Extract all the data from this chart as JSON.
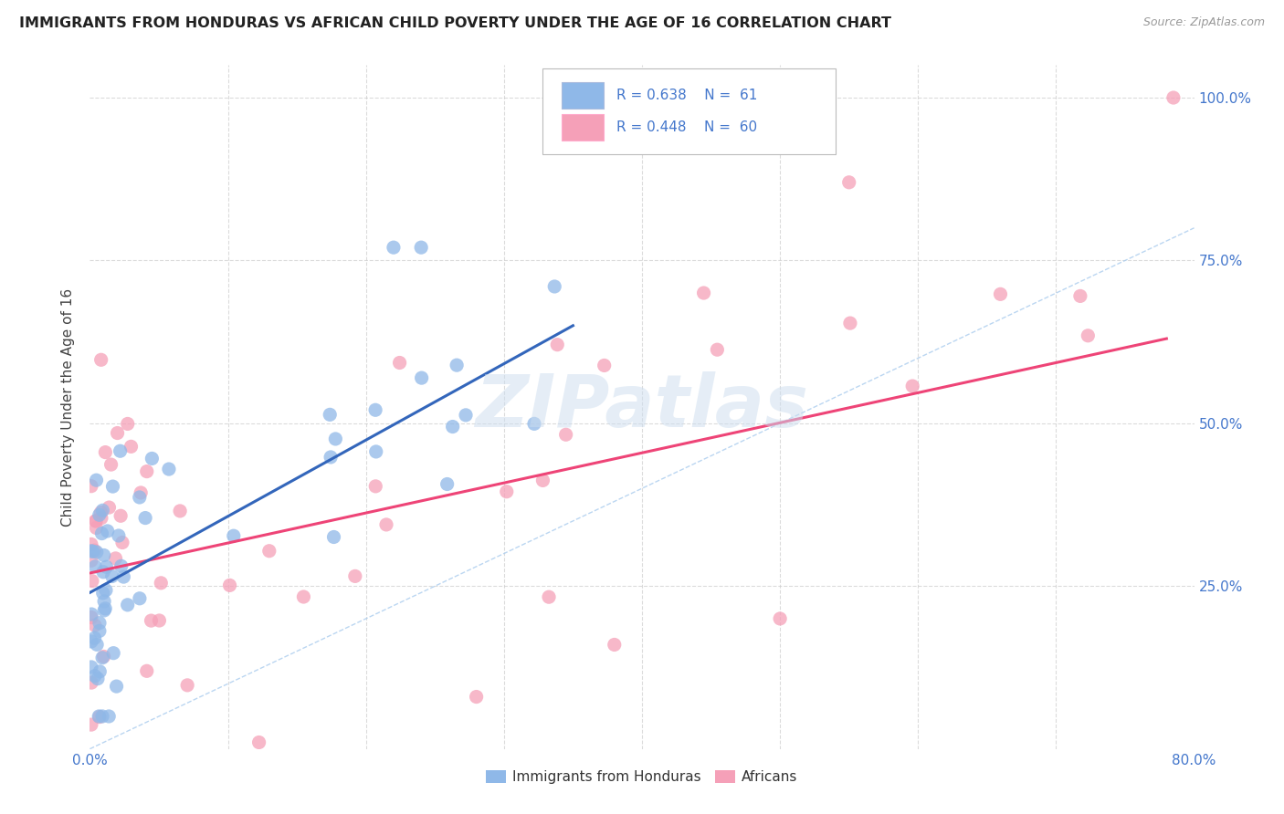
{
  "title": "IMMIGRANTS FROM HONDURAS VS AFRICAN CHILD POVERTY UNDER THE AGE OF 16 CORRELATION CHART",
  "source": "Source: ZipAtlas.com",
  "ylabel": "Child Poverty Under the Age of 16",
  "xlim": [
    0,
    0.8
  ],
  "ylim": [
    0,
    1.05
  ],
  "color_blue": "#8FB8E8",
  "color_pink": "#F5A0B8",
  "color_blue_line": "#3366BB",
  "color_pink_line": "#EE4477",
  "color_diag": "#AACCEE",
  "color_blue_text": "#4477CC",
  "color_grid": "#CCCCCC",
  "marker_size": 120,
  "background_color": "#FFFFFF",
  "watermark_text": "ZIPatlas",
  "watermark_color": "#CCDDEF",
  "legend_blue_r": "R = 0.638",
  "legend_blue_n": "N =  61",
  "legend_pink_r": "R = 0.448",
  "legend_pink_n": "N =  60",
  "blue_line_x": [
    0.0,
    0.35
  ],
  "blue_line_y": [
    0.24,
    0.65
  ],
  "pink_line_x": [
    0.0,
    0.78
  ],
  "pink_line_y": [
    0.27,
    0.63
  ],
  "diag_line_x": [
    0.0,
    0.8
  ],
  "diag_line_y": [
    0.0,
    0.8
  ]
}
